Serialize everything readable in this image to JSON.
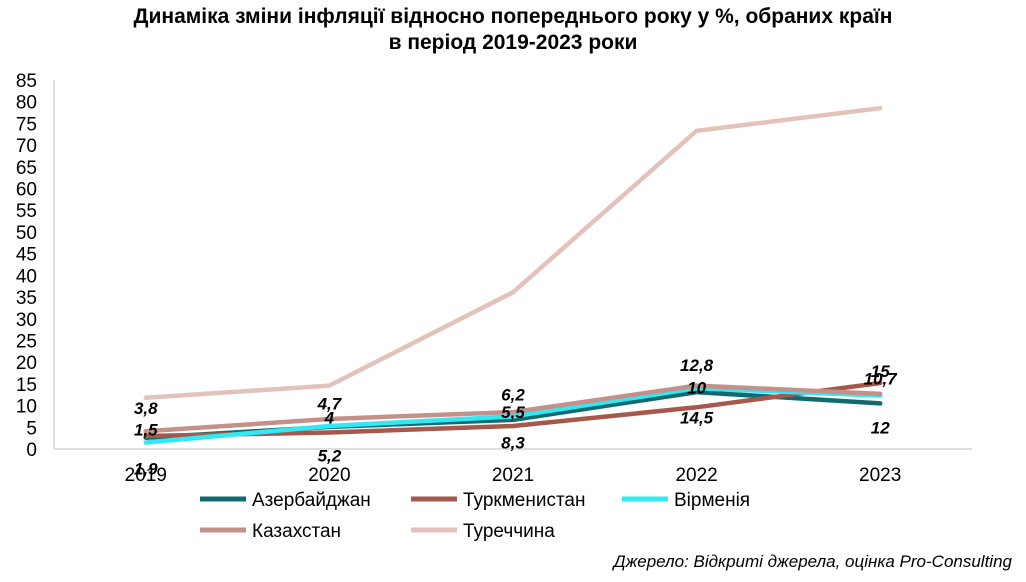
{
  "chart_data": {
    "type": "line",
    "title_line1": "Динаміка зміни інфляції відносно попереднього року у %, обраних країн",
    "title_line2": "в період  2019-2023 роки",
    "x": [
      "2019",
      "2020",
      "2021",
      "2022",
      "2023"
    ],
    "yticks": [
      "0",
      "5",
      "10",
      "15",
      "20",
      "25",
      "30",
      "35",
      "40",
      "45",
      "50",
      "55",
      "60",
      "65",
      "70",
      "75",
      "80",
      "85"
    ],
    "ylim": [
      0,
      85
    ],
    "legend_position": "bottom",
    "series": [
      {
        "name": "Азербайджан",
        "color": "#0f6b70",
        "values": [
          2.6,
          5.1,
          6.7,
          13.1,
          10.5
        ]
      },
      {
        "name": "Туркменистан",
        "color": "#a6584c",
        "values": [
          3.0,
          3.8,
          5.3,
          9.6,
          15.2
        ]
      },
      {
        "name": "Вірменія",
        "color": "#33e8f5",
        "values": [
          1.5,
          5.3,
          7.5,
          14.0,
          12.3
        ]
      },
      {
        "name": "Казахстан",
        "color": "#c3908a",
        "values": [
          4.1,
          6.9,
          8.5,
          14.6,
          12.7
        ]
      },
      {
        "name": "Туреччина",
        "color": "#e3c2bb",
        "values": [
          11.8,
          14.6,
          36.1,
          73.3,
          78.5
        ]
      }
    ],
    "data_labels": [
      {
        "text": "3,8",
        "x": "2019",
        "y": 9.5
      },
      {
        "text": "1,5",
        "x": "2019",
        "y": 4.5
      },
      {
        "text": "1,9",
        "x": "2019",
        "y": -4.5
      },
      {
        "text": "4,7",
        "x": "2020",
        "y": 10.5
      },
      {
        "text": "4",
        "x": "2020",
        "y": 7.3
      },
      {
        "text": "5,2",
        "x": "2020",
        "y": -1.5
      },
      {
        "text": "6,2",
        "x": "2021",
        "y": 12.5
      },
      {
        "text": "5,5",
        "x": "2021",
        "y": 8.5
      },
      {
        "text": "8,3",
        "x": "2021",
        "y": 1.5
      },
      {
        "text": "12,8",
        "x": "2022",
        "y": 19.3
      },
      {
        "text": "10",
        "x": "2022",
        "y": 14.2
      },
      {
        "text": "14,5",
        "x": "2022",
        "y": 7.2
      },
      {
        "text": "15",
        "x": "2023",
        "y": 18.0
      },
      {
        "text": "10,7",
        "x": "2023",
        "y": 16.2
      },
      {
        "text": "12",
        "x": "2023",
        "y": 5.0
      }
    ]
  },
  "source": "Джерело: Відкриті джерела, оцінка Pro-Consulting"
}
